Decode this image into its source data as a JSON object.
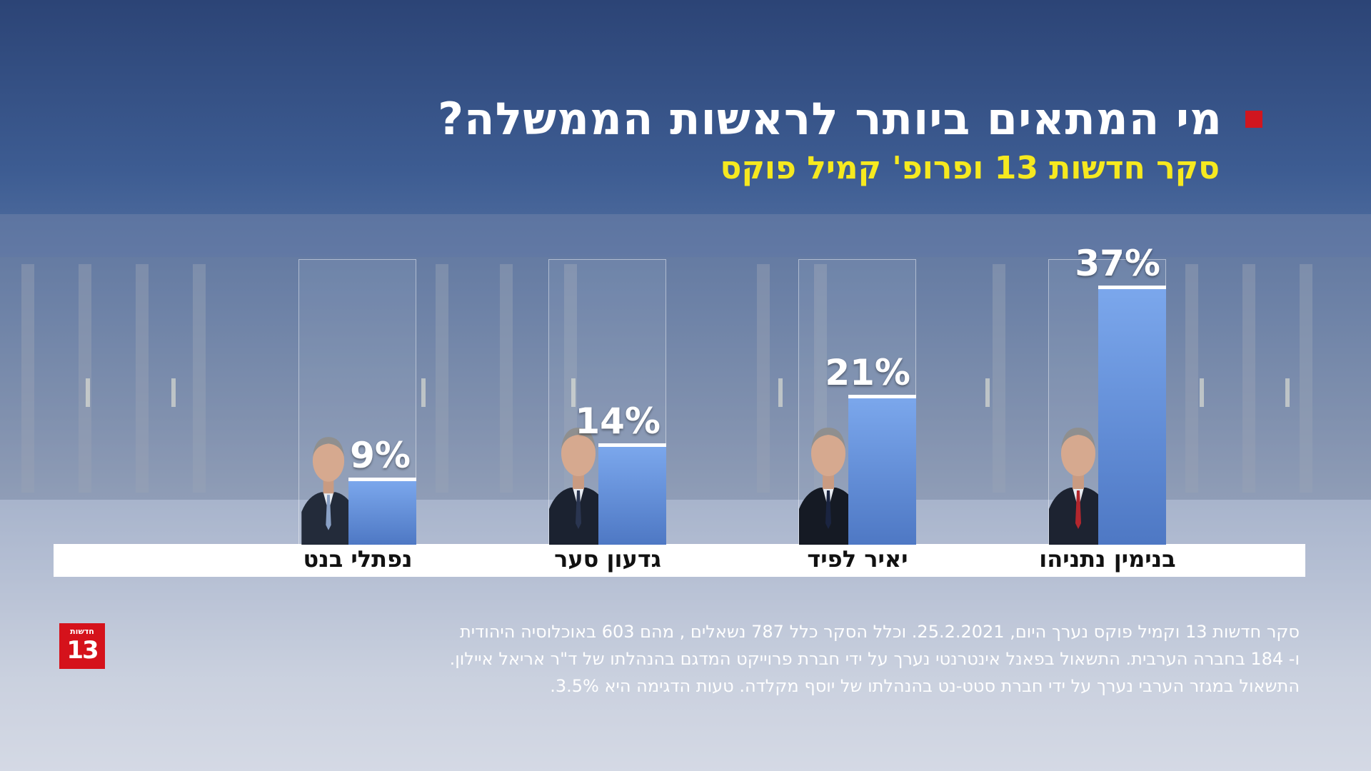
{
  "headline": "מי המתאים ביותר לראשות הממשלה?",
  "subheadline": "סקר חדשות 13 ופרופ' קמיל פוקס",
  "accent_colors": {
    "headline_square": "#d0161f",
    "subheadline": "#f6e91f",
    "bar": "#6f9be3"
  },
  "chart_data": {
    "type": "bar",
    "title": "מי המתאים ביותר לראשות הממשלה?",
    "subtitle": "סקר חדשות 13 ופרופ' קמיל פוקס",
    "categories": [
      "בנימין נתניהו",
      "יאיר לפיד",
      "גדעון סער",
      "נפתלי בנט"
    ],
    "values": [
      37,
      21,
      14,
      9
    ],
    "value_labels": [
      "37%",
      "21%",
      "14%",
      "9%"
    ],
    "unit": "%",
    "ylim": [
      0,
      40
    ],
    "xlabel": "",
    "ylabel": "",
    "grid": false
  },
  "candidates": [
    {
      "name": "בנימין נתניהו",
      "label": "37%"
    },
    {
      "name": "יאיר לפיד",
      "label": "21%"
    },
    {
      "name": "גדעון סער",
      "label": "14%"
    },
    {
      "name": "נפתלי בנט",
      "label": "9%"
    }
  ],
  "logo": {
    "top_text": "חדשות",
    "number": "13"
  },
  "footnote": {
    "line1": "סקר חדשות 13 וקמיל פוקס נערך היום, 25.2.2021. וכלל  הסקר כלל 787 נשאלים , מהם 603 באוכלוסיה  היהודית",
    "line2": "ו- 184 בחברה הערבית. התשאול  בפאנל אינטרנטי נערך על ידי חברת פרוייקט המדגם בהנהלתו של ד\"ר אריאל איילון.",
    "line3": "התשאול  במגזר הערבי נערך על ידי חברת סטט-נט בהנהלתו של יוסף מקלדה. טעות הדגימה היא 3.5%."
  }
}
